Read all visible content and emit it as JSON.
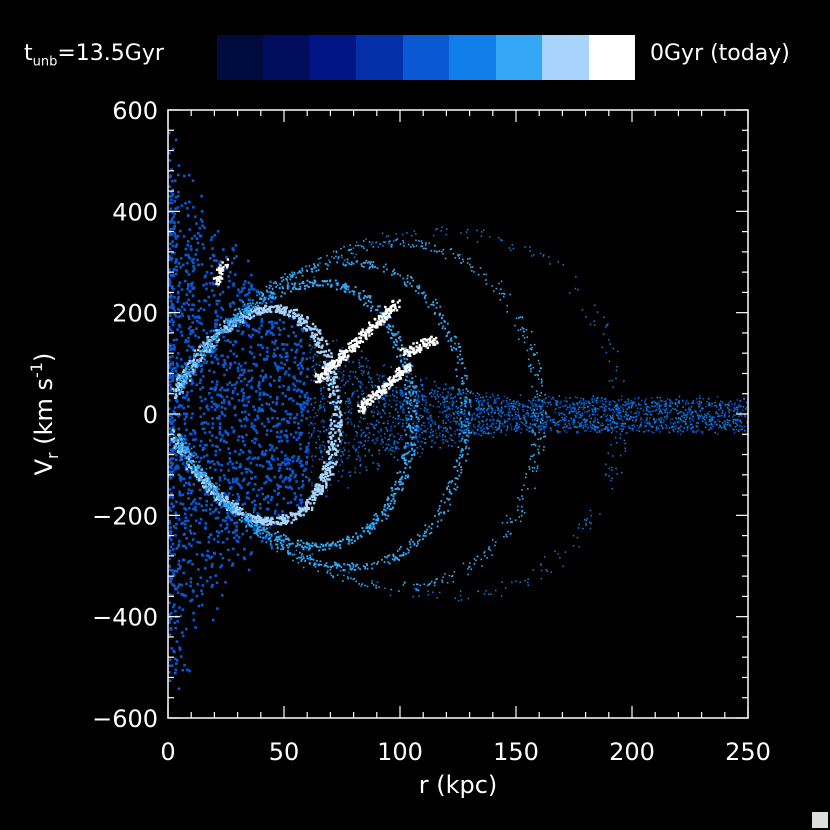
{
  "chart_data": {
    "type": "scatter",
    "title": "",
    "xlabel": "r (kpc)",
    "ylabel_main": "V",
    "ylabel_sub": "r",
    "ylabel_rest": " (km s",
    "ylabel_sup": "-1",
    "ylabel_end": ")",
    "xlim": [
      0,
      250
    ],
    "ylim": [
      -600,
      600
    ],
    "xticks": [
      "0",
      "50",
      "100",
      "150",
      "200",
      "250"
    ],
    "yticks": [
      "-600",
      "-400",
      "-200",
      "0",
      "200",
      "400",
      "600"
    ],
    "grid": false,
    "colorbar": {
      "left_label_main": "t",
      "left_label_sub": "unb",
      "left_label_rest": "=13.5Gyr",
      "right_label": "0Gyr (today)",
      "colors": [
        "#000a3c",
        "#000d5c",
        "#001585",
        "#0330a8",
        "#0a58d2",
        "#0f7ee8",
        "#35a8f5",
        "#a8d4fb",
        "#ffffff"
      ]
    },
    "series": [
      {
        "component": "background halo",
        "color": "#0a58d2"
      },
      {
        "component": "inner shell",
        "color": "#a8d4fb"
      },
      {
        "component": "outer shells",
        "color": "#35a8f5"
      },
      {
        "component": "recent debris",
        "color": "#ffffff"
      }
    ]
  }
}
